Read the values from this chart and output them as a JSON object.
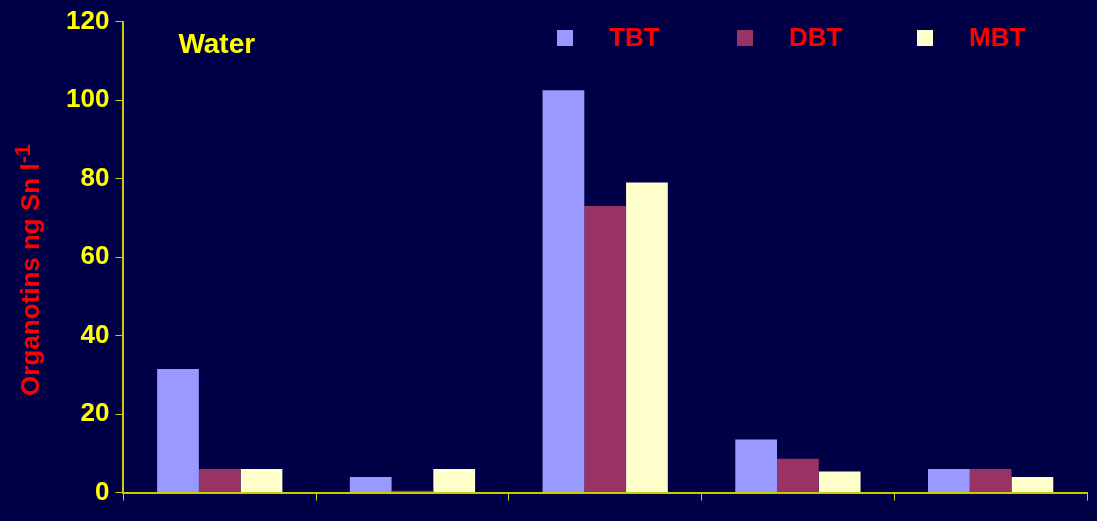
{
  "chart_data": {
    "type": "bar",
    "ylabel": "Organotins ng Sn l$^{-1}$",
    "annotations": [
      "Water"
    ],
    "categories": [
      null,
      null,
      null,
      null,
      null
    ],
    "series": [
      {
        "name": "TBT",
        "color": "#9999ff",
        "values": [
          31.5,
          4,
          102.5,
          13.5,
          6
        ]
      },
      {
        "name": "DBT",
        "color": "#993366",
        "values": [
          6,
          0.5,
          73,
          8.6,
          6
        ]
      },
      {
        "name": "MBT",
        "color": "#ffffcc",
        "values": [
          6,
          6,
          79,
          5.4,
          4
        ]
      }
    ],
    "ylim": [
      0,
      120
    ],
    "yticks": [
      0,
      20,
      40,
      60,
      80,
      100,
      120
    ],
    "legend": "top right"
  }
}
